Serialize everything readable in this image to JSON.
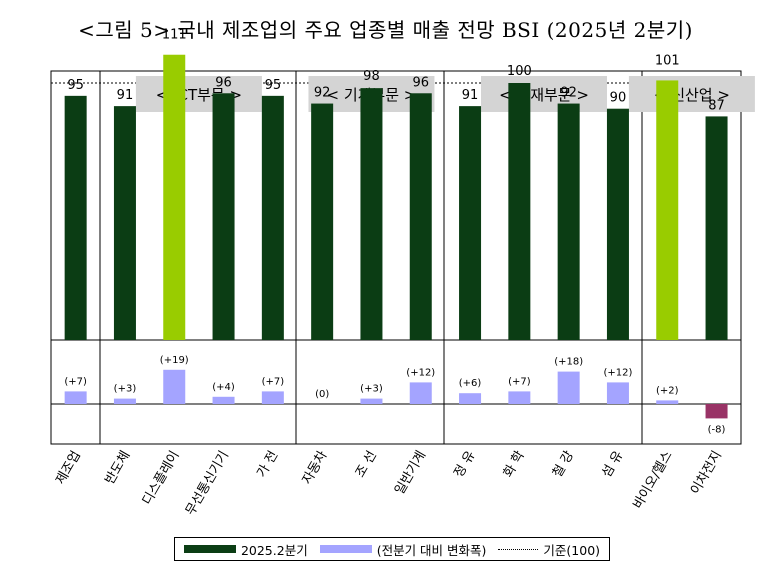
{
  "title": "<그림 5> 국내 제조업의 주요 업종별 매출 전망 BSI (2025년 2분기)",
  "groups": [
    {
      "label": "< ICT부문 >",
      "first": 1,
      "last": 4
    },
    {
      "label": "< 기계부문 >",
      "first": 5,
      "last": 7
    },
    {
      "label": "< 소재부문 >",
      "first": 8,
      "last": 11
    },
    {
      "label": "< 신산업 >",
      "first": 12,
      "last": 13
    }
  ],
  "legend": {
    "bar_label": "2025.2분기",
    "change_label": "(전분기 대비 변화폭)",
    "line_label": "기준(100)"
  },
  "colors": {
    "bar": "#0b3d14",
    "highlight": "#99cc00",
    "change_pos": "#a4a4ff",
    "change_neg": "#993366",
    "group_header": "#d4d4d4"
  },
  "chart_data": {
    "type": "bar",
    "categories": [
      "제조업",
      "반도체",
      "디스플레이",
      "무선통신기기",
      "가 전",
      "자동차",
      "조 선",
      "일반기계",
      "정 유",
      "화 학",
      "철 강",
      "섬 유",
      "바이오/헬스",
      "이차전지"
    ],
    "series": [
      {
        "name": "2025.2분기",
        "values": [
          95,
          91,
          111,
          96,
          95,
          92,
          98,
          96,
          91,
          100,
          92,
          90,
          101,
          87
        ]
      },
      {
        "name": "(전분기 대비 변화폭)",
        "values": [
          7,
          3,
          19,
          4,
          7,
          0,
          3,
          12,
          6,
          7,
          18,
          12,
          2,
          -8
        ]
      }
    ],
    "change_labels": [
      "(+7)",
      "(+3)",
      "(+19)",
      "(+4)",
      "(+7)",
      "(0)",
      "(+3)",
      "(+12)",
      "(+6)",
      "(+7)",
      "(+18)",
      "(+12)",
      "(+2)",
      "(-8)"
    ],
    "highlight": [
      "디스플레이",
      "바이오/헬스"
    ],
    "reference_line": 100,
    "legend_position": "bottom"
  }
}
